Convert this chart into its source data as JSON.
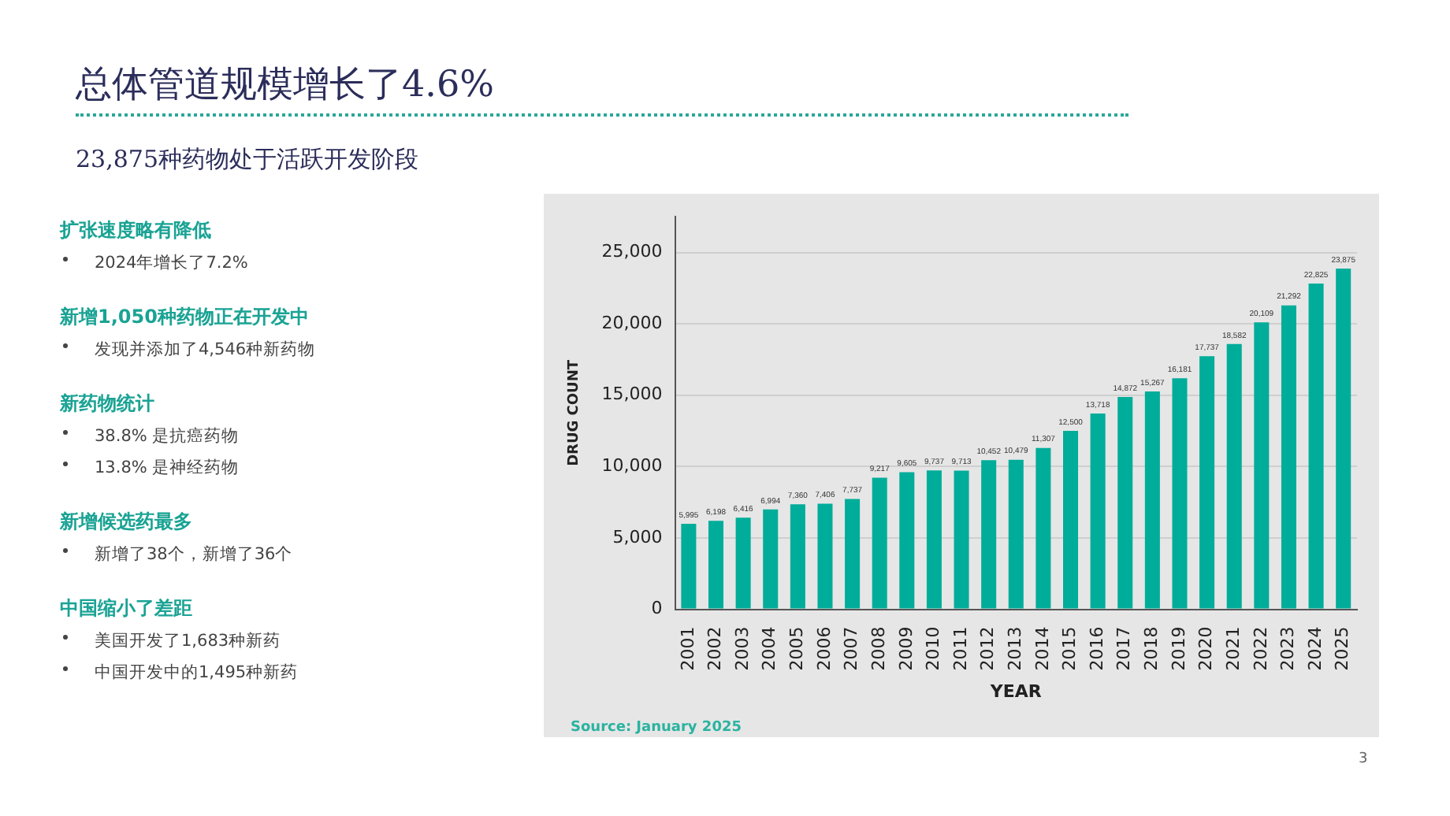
{
  "chart_data": {
    "type": "bar",
    "title": "总体管道规模增长了4.6%",
    "subtitle": "23,875种药物处于活跃开发阶段",
    "xlabel": "YEAR",
    "ylabel": "DRUG COUNT",
    "categories": [
      "2001",
      "2002",
      "2003",
      "2004",
      "2005",
      "2006",
      "2007",
      "2008",
      "2009",
      "2010",
      "2011",
      "2012",
      "2013",
      "2014",
      "2015",
      "2016",
      "2017",
      "2018",
      "2019",
      "2020",
      "2021",
      "2022",
      "2023",
      "2024",
      "2025"
    ],
    "values": [
      5995,
      6198,
      6416,
      6994,
      7360,
      7406,
      7737,
      9217,
      9605,
      9737,
      9713,
      10452,
      10479,
      11307,
      12500,
      13718,
      14872,
      15267,
      16181,
      17737,
      18582,
      20109,
      21292,
      22825,
      23875
    ],
    "value_labels": [
      "5,995",
      "6,198",
      "6,416",
      "6,994",
      "7,360",
      "7,406",
      "7,737",
      "9,217",
      "9,605",
      "9,737",
      "9,713",
      "10,452",
      "10,479",
      "11,307",
      "12,500",
      "13,718",
      "14,872",
      "15,267",
      "16,181",
      "17,737",
      "18,582",
      "20,109",
      "21,292",
      "22,825",
      "23,875"
    ],
    "color": "#00ad9a",
    "ylim": [
      0,
      27500
    ],
    "yticks": [
      0,
      {
        "value": 5000,
        "label": "5,000"
      },
      {
        "value": 10000,
        "label": "10,000"
      },
      {
        "value": 15000,
        "label": "15,000"
      },
      {
        "value": 20000,
        "label": "20,000"
      },
      {
        "value": 25000,
        "label": "25,000"
      }
    ],
    "grid": "y",
    "annotations": [
      "扩张速度略有降低",
      "2024年增长了7.2%",
      "新增1,050种药物正在开发中",
      "发现并添加了4,546种新药物",
      "新药物统计",
      "38.8% 是抗癌药物",
      "13.8% 是神经药物",
      "新增候选药最多",
      "新增了38个，新增了36个",
      "中国缩小了差距",
      "美国开发了1,683种新药",
      "中国开发中的1,495种新药",
      "Source: January 2025",
      "3"
    ]
  }
}
